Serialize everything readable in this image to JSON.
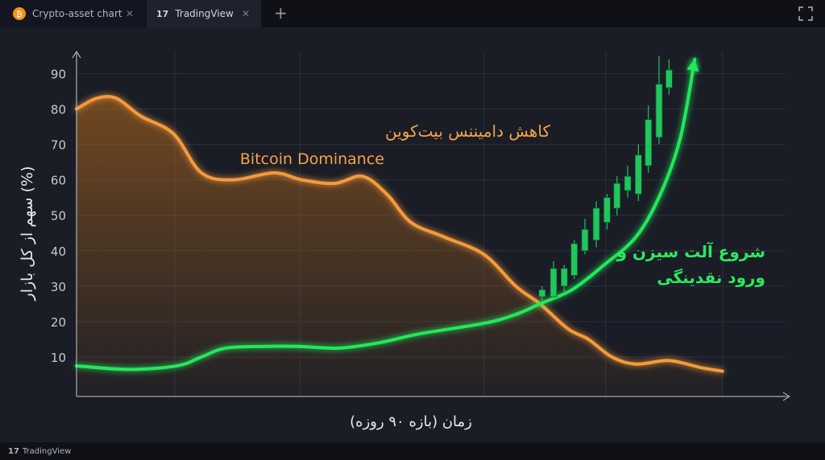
{
  "tabs": [
    "Crypto-asset chart",
    "TradingView"
  ],
  "footer": "TradingView",
  "chart_data": {
    "type": "line",
    "ylabel": "سهم از کل بازار (%)",
    "xlabel": "زمان (بازه ۹۰ روزه)",
    "annotations": [
      "کاهش دامیننس بیت‌کوین",
      "Bitcoin Dominance",
      "شروع آلت سیزن و",
      "ورود نقدینگی"
    ],
    "xlim": [
      0,
      100
    ],
    "xticks": [
      13.8,
      31.3,
      57.1,
      74.2,
      90.6
    ],
    "ylim": [
      0,
      96
    ],
    "yticks": [
      10,
      20,
      30,
      40,
      50,
      60,
      70,
      80,
      90
    ],
    "grid": true,
    "series": [
      {
        "color": "#f59a3b",
        "fill": true,
        "x": [
          0,
          2.8,
          5.6,
          9.0,
          13.6,
          17.5,
          22.0,
          27.7,
          31.6,
          36.2,
          40.1,
          43.5,
          46.9,
          51.4,
          57.1,
          61.6,
          65.0,
          68.9,
          71.8,
          75.1,
          78.5,
          83.1,
          87.6,
          90.6
        ],
        "values": [
          80,
          83,
          83,
          78,
          73,
          62,
          60,
          62,
          60,
          59,
          61,
          56,
          48,
          44,
          39,
          30,
          25,
          18,
          15,
          10,
          8,
          9,
          7,
          6
        ]
      },
      {
        "color": "#22e85a",
        "fill": false,
        "arrow": true,
        "x": [
          0,
          7.3,
          14.1,
          17.5,
          20.9,
          26.6,
          31.1,
          36.7,
          42.4,
          48.0,
          57.1,
          61.6,
          65.0,
          69.5,
          74.0,
          78.5,
          81.9,
          84.7,
          86.7
        ],
        "values": [
          7.5,
          6.5,
          7.5,
          10,
          12.5,
          13,
          13,
          12.5,
          14,
          16.5,
          19.5,
          22,
          25,
          29,
          36,
          44,
          56,
          72,
          94
        ]
      }
    ],
    "candles": {
      "color": "#22c55e",
      "x": [
        65.3,
        66.9,
        68.4,
        69.8,
        71.3,
        72.9,
        74.4,
        75.8,
        77.3,
        78.8,
        80.2,
        81.7,
        83.1
      ],
      "open": [
        27,
        27,
        30,
        33,
        40,
        43,
        48,
        52,
        57,
        56,
        64,
        72,
        86
      ],
      "high": [
        30,
        37,
        36,
        43,
        49,
        54,
        56,
        61,
        64,
        70,
        81,
        95,
        94
      ],
      "low": [
        26,
        26,
        28,
        32,
        39,
        41,
        46,
        50,
        55,
        54,
        62,
        70,
        84
      ],
      "close": [
        29,
        35,
        35,
        42,
        46,
        52,
        55,
        59,
        61,
        67,
        77,
        87,
        91
      ]
    }
  }
}
